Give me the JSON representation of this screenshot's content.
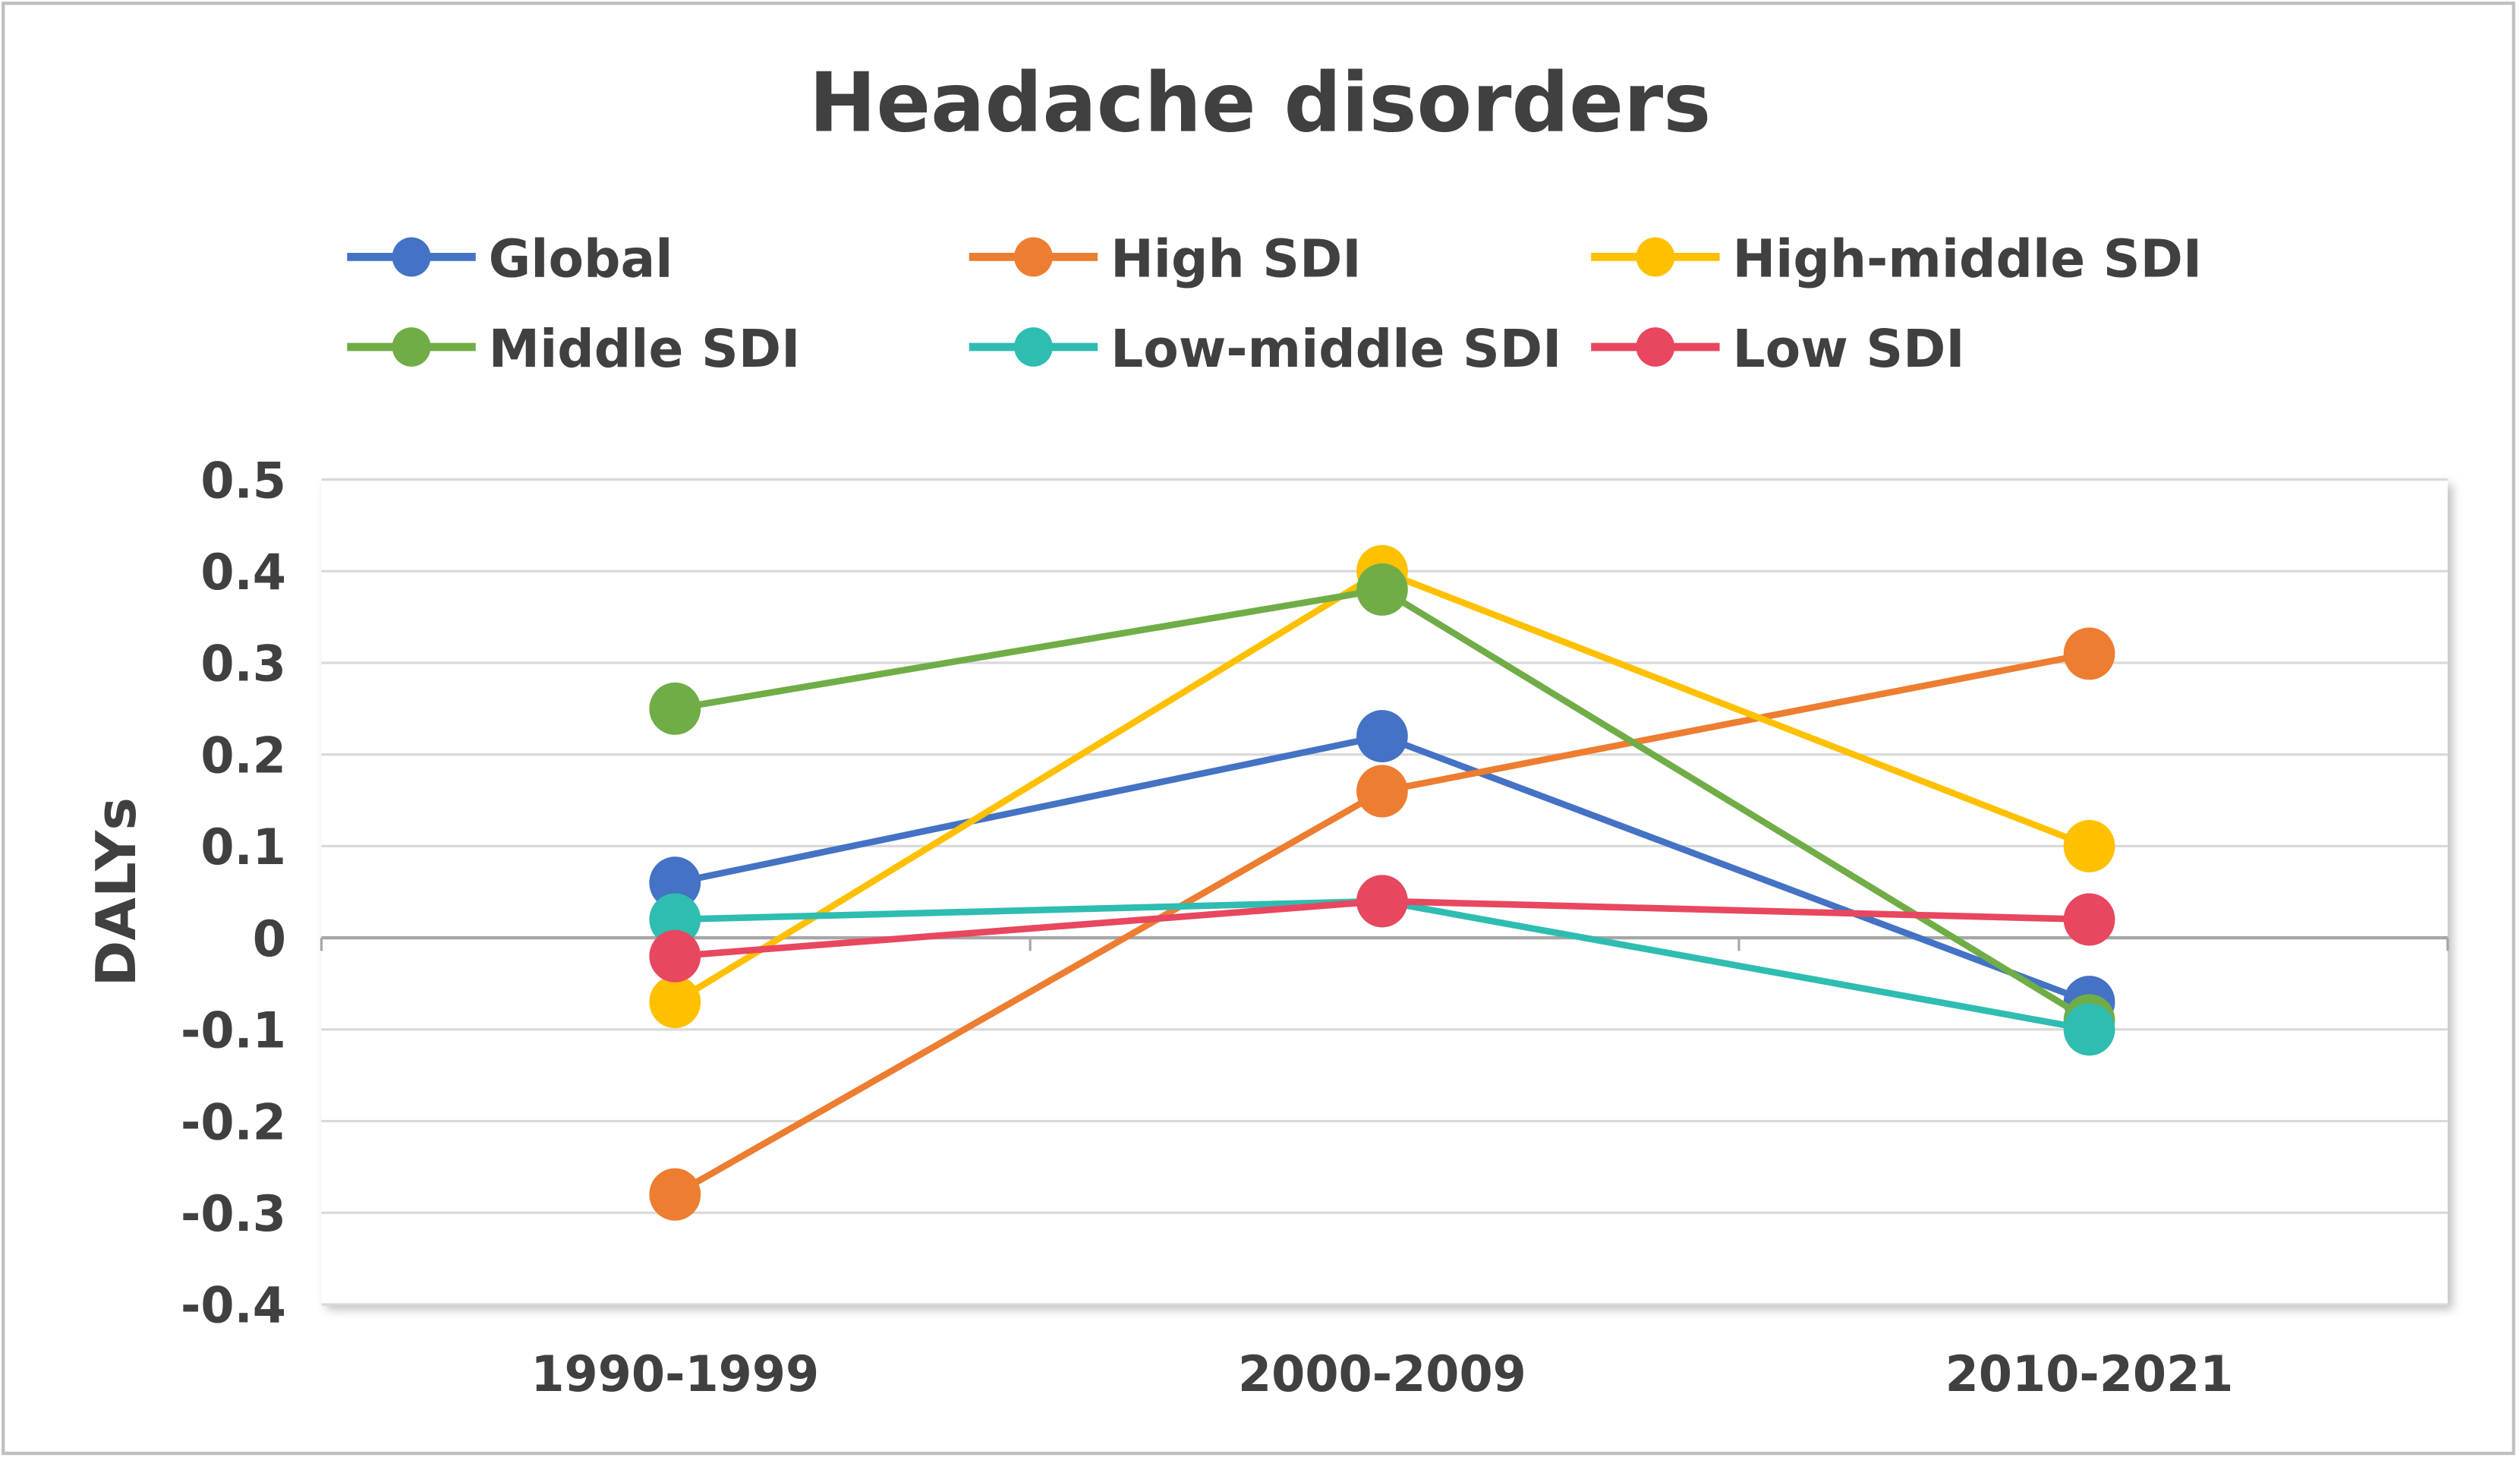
{
  "chart_data": {
    "type": "line",
    "title": "Headache disorders",
    "xlabel": "",
    "ylabel": "DALYs",
    "categories": [
      "1990-1999",
      "2000-2009",
      "2010-2021"
    ],
    "ylim": [
      -0.4,
      0.5
    ],
    "yticks": [
      "0.5",
      "0.4",
      "0.3",
      "0.2",
      "0.1",
      "0",
      "-0.1",
      "-0.2",
      "-0.3",
      "-0.4"
    ],
    "grid": true,
    "legend_placement": "top",
    "series": [
      {
        "name": "Global",
        "color": "#4472C4",
        "values": [
          0.06,
          0.22,
          -0.07
        ]
      },
      {
        "name": "High SDI",
        "color": "#ED7D31",
        "values": [
          -0.28,
          0.16,
          0.31
        ]
      },
      {
        "name": "High-middle SDI",
        "color": "#FFC000",
        "values": [
          -0.07,
          0.4,
          0.1
        ]
      },
      {
        "name": "Middle SDI",
        "color": "#70AD47",
        "values": [
          0.25,
          0.38,
          -0.09
        ]
      },
      {
        "name": "Low-middle SDI",
        "color": "#2EBDB0",
        "values": [
          0.02,
          0.04,
          -0.1
        ]
      },
      {
        "name": "Low SDI",
        "color": "#E8475F",
        "values": [
          -0.02,
          0.04,
          0.02
        ]
      }
    ]
  }
}
